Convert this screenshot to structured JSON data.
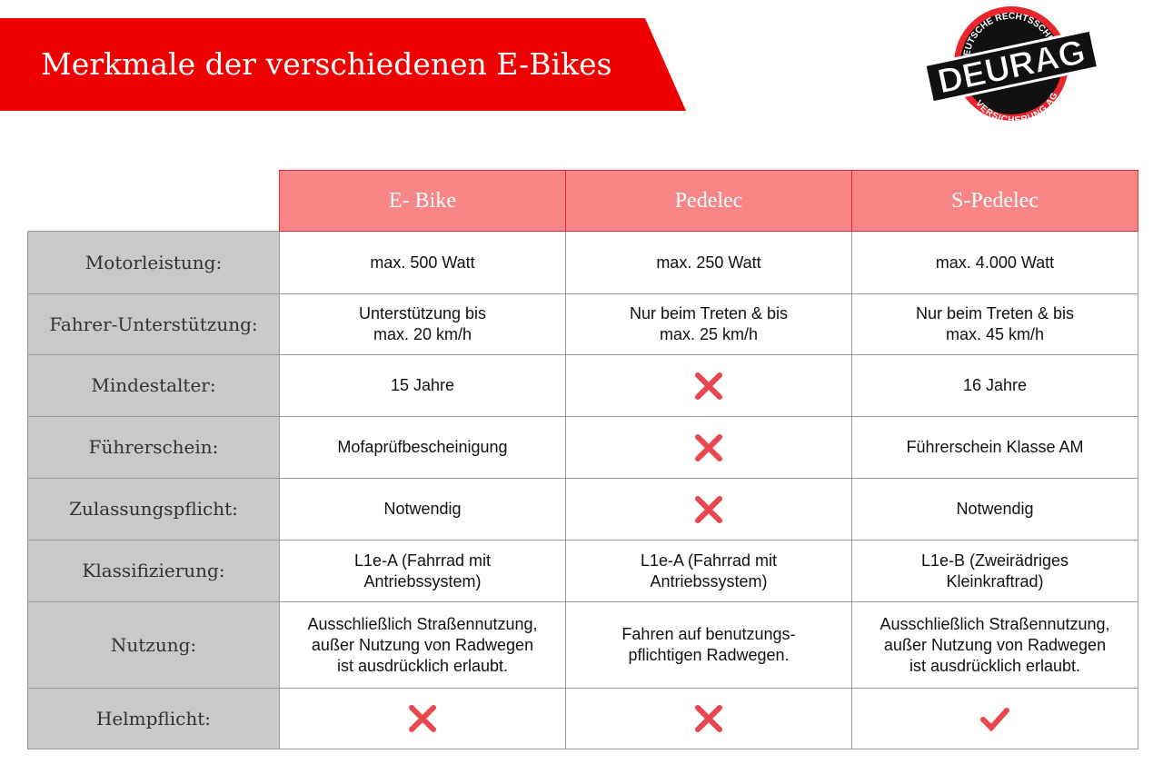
{
  "header": {
    "title": "Merkmale der verschiedenen E-Bikes"
  },
  "logo": {
    "name": "DEURAG",
    "top": "DEUTSCHE RECHTSSCHUTZ",
    "bottom": "VERSICHERUNG AG"
  },
  "table": {
    "columns": [
      "E- Bike",
      "Pedelec",
      "S-Pedelec"
    ],
    "rows": [
      [
        "Motorleistung:",
        "max. 500 Watt",
        "max. 250 Watt",
        "max. 4.000 Watt"
      ],
      [
        "Fahrer-Unterstützung:",
        "Unterstützung bis\nmax. 20 km/h",
        "Nur beim Treten & bis\nmax. 25 km/h",
        "Nur beim Treten & bis\nmax. 45 km/h"
      ],
      [
        "Mindestalter:",
        "15 Jahre",
        null,
        "16 Jahre"
      ],
      [
        "Führerschein:",
        "Mofaprüfbescheinigung",
        null,
        "Führerschein Klasse AM"
      ],
      [
        "Zulassungspflicht:",
        "Notwendig",
        null,
        "Notwendig"
      ],
      [
        "Klassifizierung:",
        "L1e-A (Fahrrad mit\nAntriebssystem)",
        "L1e-A (Fahrrad mit\nAntriebssystem)",
        "L1e-B (Zweirädriges\nKleinkraftrad)"
      ],
      [
        "Nutzung:",
        "Ausschließlich Straßennutzung,\naußer Nutzung von Radwegen\nist ausdrücklich erlaubt.",
        "Fahren auf benutzungs-\npflichtigen Radwegen.",
        "Ausschließlich Straßennutzung,\naußer Nutzung von Radwegen\nist ausdrücklich erlaubt."
      ],
      [
        "Helmpflicht:",
        null,
        null,
        null
      ]
    ]
  }
}
